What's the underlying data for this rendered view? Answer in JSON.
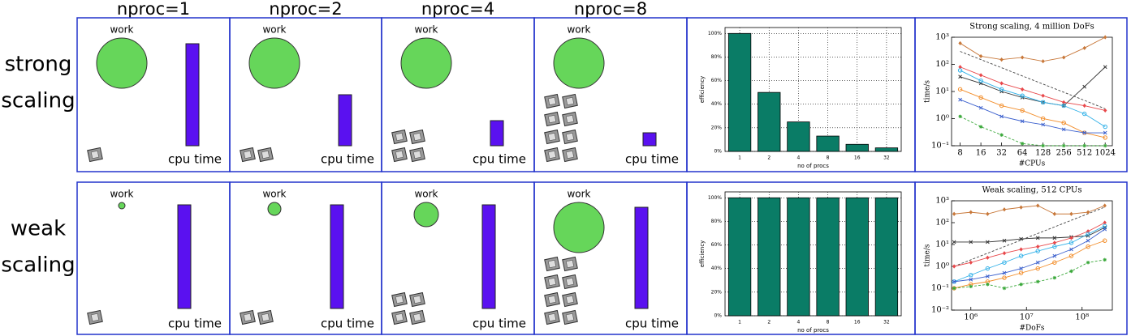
{
  "header": {
    "columns": [
      "nproc=1",
      "nproc=2",
      "nproc=4",
      "nproc=8"
    ]
  },
  "rows": [
    {
      "label": [
        "strong",
        "scaling"
      ],
      "work": "work",
      "cpu": "cpu time"
    },
    {
      "label": [
        "weak",
        "scaling"
      ],
      "work": "work",
      "cpu": "cpu time"
    }
  ],
  "chart_data": [
    {
      "type": "bar",
      "xlabel": "no of procs",
      "ylabel": "efficiency",
      "color": "#0a7c66",
      "categories": [
        "1",
        "2",
        "4",
        "8",
        "16",
        "32"
      ],
      "values": [
        100,
        50,
        25,
        13,
        6,
        3
      ],
      "ylim": [
        0,
        105
      ],
      "yticks": [
        {
          "value": 0,
          "label": "0%"
        },
        {
          "value": 20,
          "label": "20%"
        },
        {
          "value": 40,
          "label": "40%"
        },
        {
          "value": 60,
          "label": "60%"
        },
        {
          "value": 80,
          "label": "80%"
        },
        {
          "value": 100,
          "label": "100%"
        }
      ],
      "grid": true
    },
    {
      "type": "line",
      "title": "Strong scaling, 4 million DoFs",
      "xlabel": "#CPUs",
      "ylabel": "time/s",
      "xlog": true,
      "ylog": true,
      "x": [
        8,
        16,
        32,
        64,
        128,
        256,
        512,
        1024
      ],
      "xlim": [
        6,
        1300
      ],
      "xticks": [
        8,
        16,
        32,
        64,
        128,
        256,
        512,
        1024
      ],
      "ylim": [
        0.1,
        1000
      ],
      "yticks": [
        {
          "value": 0.1,
          "label": "10⁻¹"
        },
        {
          "value": 1,
          "label": "10⁰"
        },
        {
          "value": 10,
          "label": "10¹"
        },
        {
          "value": 100,
          "label": "10²"
        },
        {
          "value": 1000,
          "label": "10³"
        }
      ],
      "series": [
        {
          "color": "#444444",
          "dash": true,
          "values": [
            300,
            150,
            75,
            37.5,
            18.75,
            9.4,
            4.7,
            2.3
          ]
        },
        {
          "color": "#c8783a",
          "marker": "diamond",
          "values": [
            600,
            200,
            150,
            180,
            130,
            180,
            400,
            1000
          ]
        },
        {
          "color": "#333333",
          "marker": "x",
          "values": [
            35,
            20,
            10,
            6,
            4,
            3,
            15,
            80
          ]
        },
        {
          "color": "#e8474a",
          "marker": "diamond",
          "values": [
            80,
            40,
            20,
            12,
            7,
            4,
            3,
            2
          ]
        },
        {
          "color": "#2fb0e8",
          "marker": "circle",
          "values": [
            60,
            25,
            12,
            7,
            4,
            3,
            1.5,
            0.5
          ]
        },
        {
          "color": "#f28c28",
          "marker": "circle",
          "values": [
            12,
            6,
            3,
            2,
            1,
            0.7,
            0.3,
            0.2
          ]
        },
        {
          "color": "#3a5fcd",
          "marker": "x",
          "values": [
            5,
            2.5,
            1.2,
            0.8,
            0.6,
            0.4,
            0.3,
            0.3
          ]
        },
        {
          "color": "#3aa83a",
          "marker": "star",
          "dash": true,
          "values": [
            1.2,
            0.5,
            0.25,
            0.12,
            0.1,
            0.1,
            0.1,
            0.1
          ]
        }
      ]
    },
    {
      "type": "bar",
      "xlabel": "no of procs",
      "ylabel": "efficiency",
      "color": "#0a7c66",
      "categories": [
        "1",
        "2",
        "4",
        "8",
        "16",
        "32"
      ],
      "values": [
        100,
        100,
        100,
        100,
        100,
        100
      ],
      "ylim": [
        0,
        105
      ],
      "yticks": [
        {
          "value": 0,
          "label": "0%"
        },
        {
          "value": 20,
          "label": "20%"
        },
        {
          "value": 40,
          "label": "40%"
        },
        {
          "value": 60,
          "label": "60%"
        },
        {
          "value": 80,
          "label": "80%"
        },
        {
          "value": 100,
          "label": "100%"
        }
      ],
      "grid": true
    },
    {
      "type": "line",
      "title": "Weak scaling, 512 CPUs",
      "xlabel": "#DoFs",
      "ylabel": "time/s",
      "xlog": true,
      "ylog": true,
      "x": [
        500000,
        1000000,
        2000000,
        4000000,
        8000000,
        16000000,
        32000000,
        64000000,
        128000000,
        256000000
      ],
      "xlim": [
        450000,
        350000000
      ],
      "xticks": [
        {
          "value": 1000000,
          "label": "10⁶"
        },
        {
          "value": 10000000,
          "label": "10⁷"
        },
        {
          "value": 100000000,
          "label": "10⁸"
        }
      ],
      "ylim": [
        0.01,
        1000
      ],
      "yticks": [
        {
          "value": 0.01,
          "label": "10⁻²"
        },
        {
          "value": 0.1,
          "label": "10⁻¹"
        },
        {
          "value": 1,
          "label": "10⁰"
        },
        {
          "value": 10,
          "label": "10¹"
        },
        {
          "value": 100,
          "label": "10²"
        },
        {
          "value": 1000,
          "label": "10³"
        }
      ],
      "series": [
        {
          "color": "#444444",
          "dash": true,
          "values": [
            1,
            2,
            4,
            8,
            16,
            32,
            64,
            128,
            256,
            512
          ]
        },
        {
          "color": "#c8783a",
          "marker": "diamond",
          "values": [
            250,
            300,
            250,
            400,
            500,
            600,
            250,
            250,
            300,
            600
          ]
        },
        {
          "color": "#333333",
          "marker": "x",
          "values": [
            13,
            13,
            13,
            15,
            18,
            20,
            20,
            22,
            25,
            60
          ]
        },
        {
          "color": "#e8474a",
          "marker": "diamond",
          "values": [
            1,
            1.5,
            2.5,
            4,
            6,
            8,
            12,
            20,
            40,
            100
          ]
        },
        {
          "color": "#2fb0e8",
          "marker": "circle",
          "values": [
            0.2,
            0.4,
            0.8,
            1.5,
            3,
            5,
            8,
            12,
            30,
            70
          ]
        },
        {
          "color": "#3a5fcd",
          "marker": "x",
          "values": [
            0.2,
            0.25,
            0.35,
            0.5,
            0.8,
            1.5,
            3,
            6,
            15,
            50
          ]
        },
        {
          "color": "#f28c28",
          "marker": "circle",
          "values": [
            0.1,
            0.15,
            0.2,
            0.3,
            0.5,
            0.8,
            1.5,
            3,
            8,
            15
          ]
        },
        {
          "color": "#3aa83a",
          "marker": "star",
          "dash": true,
          "values": [
            0.1,
            0.12,
            0.15,
            0.1,
            0.15,
            0.2,
            0.3,
            0.6,
            1.5,
            2
          ]
        }
      ]
    }
  ]
}
